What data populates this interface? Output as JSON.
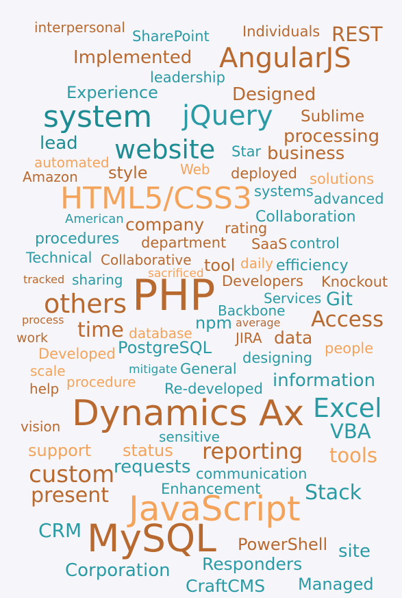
{
  "colors": {
    "dark_orange": "#b8692f",
    "light_orange": "#f3a35a",
    "teal": "#2a9aa4",
    "dark_teal": "#1f8c93"
  },
  "words": [
    {
      "text": "interpersonal",
      "color": "#b8692f"
    },
    {
      "text": "SharePoint",
      "color": "#2a9aa4"
    },
    {
      "text": "Individuals",
      "color": "#b8692f"
    },
    {
      "text": "REST",
      "color": "#b8692f"
    },
    {
      "text": "Implemented",
      "color": "#b8692f"
    },
    {
      "text": "AngularJS",
      "color": "#b8692f"
    },
    {
      "text": "leadership",
      "color": "#2a9aa4"
    },
    {
      "text": "Experience",
      "color": "#2a9aa4"
    },
    {
      "text": "Designed",
      "color": "#b8692f"
    },
    {
      "text": "system",
      "color": "#1f8c93"
    },
    {
      "text": "jQuery",
      "color": "#2a9aa4"
    },
    {
      "text": "Sublime",
      "color": "#b8692f"
    },
    {
      "text": "processing",
      "color": "#b8692f"
    },
    {
      "text": "lead",
      "color": "#1f8c93"
    },
    {
      "text": "website",
      "color": "#1f8c93"
    },
    {
      "text": "Star",
      "color": "#2a9aa4"
    },
    {
      "text": "business",
      "color": "#b8692f"
    },
    {
      "text": "automated",
      "color": "#f3a35a"
    },
    {
      "text": "style",
      "color": "#b8692f"
    },
    {
      "text": "Web",
      "color": "#f3a35a"
    },
    {
      "text": "Amazon",
      "color": "#b8692f"
    },
    {
      "text": "deployed",
      "color": "#b8692f"
    },
    {
      "text": "solutions",
      "color": "#f3a35a"
    },
    {
      "text": "HTML5/CSS3",
      "color": "#f3a35a"
    },
    {
      "text": "systems",
      "color": "#2a9aa4"
    },
    {
      "text": "advanced",
      "color": "#2a9aa4"
    },
    {
      "text": "American",
      "color": "#2a9aa4"
    },
    {
      "text": "company",
      "color": "#b8692f"
    },
    {
      "text": "rating",
      "color": "#b8692f"
    },
    {
      "text": "Collaboration",
      "color": "#2a9aa4"
    },
    {
      "text": "procedures",
      "color": "#2a9aa4"
    },
    {
      "text": "department",
      "color": "#b8692f"
    },
    {
      "text": "SaaS",
      "color": "#b8692f"
    },
    {
      "text": "control",
      "color": "#2a9aa4"
    },
    {
      "text": "Technical",
      "color": "#2a9aa4"
    },
    {
      "text": "Collaborative",
      "color": "#b8692f"
    },
    {
      "text": "tool",
      "color": "#b8692f"
    },
    {
      "text": "daily",
      "color": "#f3a35a"
    },
    {
      "text": "efficiency",
      "color": "#2a9aa4"
    },
    {
      "text": "tracked",
      "color": "#b8692f"
    },
    {
      "text": "sharing",
      "color": "#2a9aa4"
    },
    {
      "text": "sacrificed",
      "color": "#f3a35a"
    },
    {
      "text": "Developers",
      "color": "#b8692f"
    },
    {
      "text": "Knockout",
      "color": "#b8692f"
    },
    {
      "text": "PHP",
      "color": "#b8692f"
    },
    {
      "text": "others",
      "color": "#b8692f"
    },
    {
      "text": "Services",
      "color": "#2a9aa4"
    },
    {
      "text": "Git",
      "color": "#2a9aa4"
    },
    {
      "text": "Backbone",
      "color": "#2a9aa4"
    },
    {
      "text": "process",
      "color": "#b8692f"
    },
    {
      "text": "npm",
      "color": "#2a9aa4"
    },
    {
      "text": "average",
      "color": "#b8692f"
    },
    {
      "text": "Access",
      "color": "#b8692f"
    },
    {
      "text": "time",
      "color": "#b8692f"
    },
    {
      "text": "work",
      "color": "#b8692f"
    },
    {
      "text": "database",
      "color": "#f3a35a"
    },
    {
      "text": "JIRA",
      "color": "#b8692f"
    },
    {
      "text": "data",
      "color": "#b8692f"
    },
    {
      "text": "PostgreSQL",
      "color": "#2a9aa4"
    },
    {
      "text": "Developed",
      "color": "#f3a35a"
    },
    {
      "text": "people",
      "color": "#f3a35a"
    },
    {
      "text": "designing",
      "color": "#2a9aa4"
    },
    {
      "text": "scale",
      "color": "#f3a35a"
    },
    {
      "text": "mitigate",
      "color": "#2a9aa4"
    },
    {
      "text": "General",
      "color": "#2a9aa4"
    },
    {
      "text": "information",
      "color": "#2a9aa4"
    },
    {
      "text": "procedure",
      "color": "#f3a35a"
    },
    {
      "text": "help",
      "color": "#b8692f"
    },
    {
      "text": "Re-developed",
      "color": "#2a9aa4"
    },
    {
      "text": "Excel",
      "color": "#2a9aa4"
    },
    {
      "text": "Dynamics Ax",
      "color": "#b8692f"
    },
    {
      "text": "vision",
      "color": "#b8692f"
    },
    {
      "text": "VBA",
      "color": "#2a9aa4"
    },
    {
      "text": "sensitive",
      "color": "#2a9aa4"
    },
    {
      "text": "support",
      "color": "#f3a35a"
    },
    {
      "text": "status",
      "color": "#f3a35a"
    },
    {
      "text": "reporting",
      "color": "#b8692f"
    },
    {
      "text": "tools",
      "color": "#f3a35a"
    },
    {
      "text": "custom",
      "color": "#b8692f"
    },
    {
      "text": "requests",
      "color": "#2a9aa4"
    },
    {
      "text": "communication",
      "color": "#2a9aa4"
    },
    {
      "text": "present",
      "color": "#b8692f"
    },
    {
      "text": "Enhancement",
      "color": "#2a9aa4"
    },
    {
      "text": "Stack",
      "color": "#2a9aa4"
    },
    {
      "text": "JavaScript",
      "color": "#f3a35a"
    },
    {
      "text": "CRM",
      "color": "#2a9aa4"
    },
    {
      "text": "MySQL",
      "color": "#b8692f"
    },
    {
      "text": "PowerShell",
      "color": "#b8692f"
    },
    {
      "text": "site",
      "color": "#2a9aa4"
    },
    {
      "text": "Responders",
      "color": "#2a9aa4"
    },
    {
      "text": "Corporation",
      "color": "#2a9aa4"
    },
    {
      "text": "CraftCMS",
      "color": "#2a9aa4"
    },
    {
      "text": "Managed",
      "color": "#2a9aa4"
    }
  ]
}
